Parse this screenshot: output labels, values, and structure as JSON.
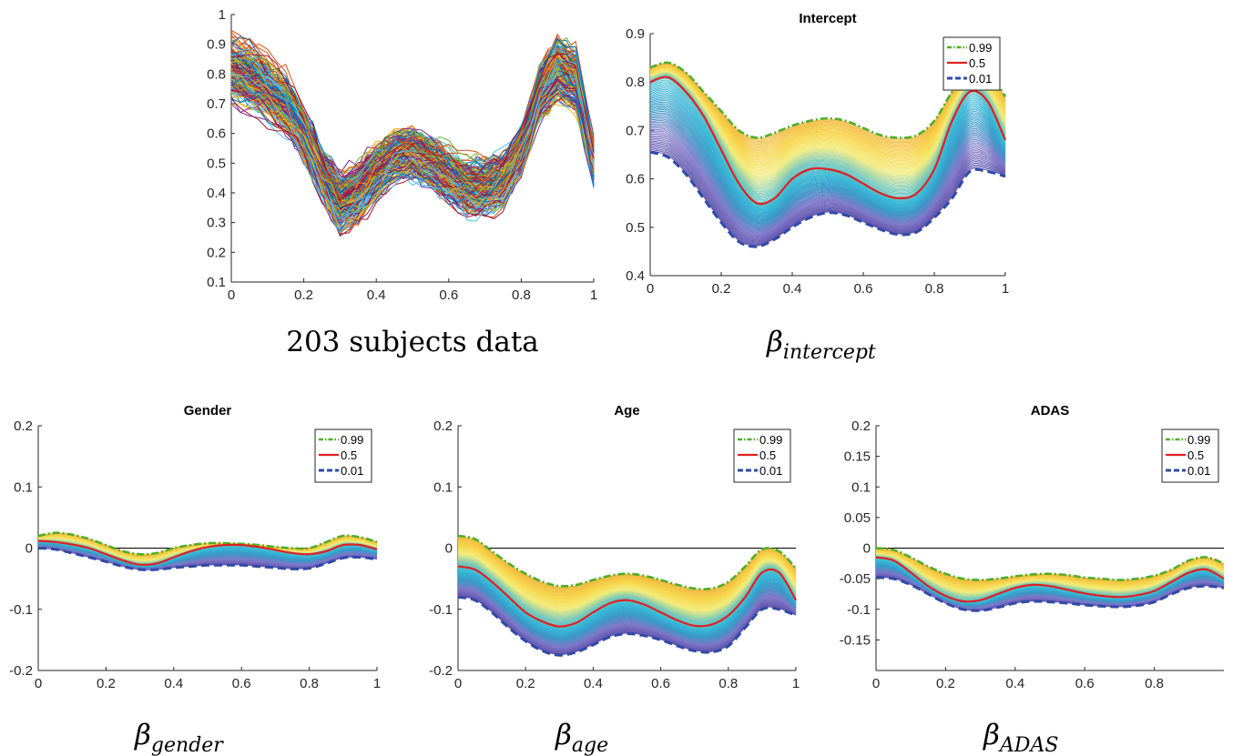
{
  "figure": {
    "captions": {
      "top_left": "203 subjects data",
      "top_right": {
        "main": "β",
        "sub": "intercept"
      },
      "bottom_left": {
        "main": "β",
        "sub": "gender"
      },
      "bottom_mid": {
        "main": "β",
        "sub": "age"
      },
      "bottom_right": {
        "main": "β",
        "sub": "ADAS"
      }
    }
  },
  "chart_data": [
    {
      "id": "subjects",
      "type": "line",
      "title": "",
      "xlim": [
        0,
        1
      ],
      "ylim": [
        0.1,
        1
      ],
      "xticks": [
        0,
        0.2,
        0.4,
        0.6,
        0.8,
        1
      ],
      "xtick_labels": [
        "0",
        "0.2",
        "0.4",
        "0.6",
        "0.8",
        "1"
      ],
      "yticks": [
        0.1,
        0.2,
        0.3,
        0.4,
        0.5,
        0.6,
        0.7,
        0.8,
        0.9,
        1
      ],
      "ytick_labels": [
        "0.1",
        "0.2",
        "0.3",
        "0.4",
        "0.5",
        "0.6",
        "0.7",
        "0.8",
        "0.9",
        "1"
      ],
      "n_series": 203,
      "x": [
        0,
        0.05,
        0.1,
        0.15,
        0.2,
        0.25,
        0.3,
        0.35,
        0.4,
        0.45,
        0.5,
        0.55,
        0.6,
        0.65,
        0.7,
        0.75,
        0.8,
        0.85,
        0.9,
        0.95,
        1
      ],
      "mean_profile": [
        0.8,
        0.78,
        0.74,
        0.69,
        0.6,
        0.47,
        0.37,
        0.4,
        0.47,
        0.52,
        0.53,
        0.5,
        0.46,
        0.42,
        0.42,
        0.45,
        0.55,
        0.72,
        0.81,
        0.77,
        0.5
      ],
      "colors": [
        "#0072bd",
        "#d95319",
        "#edb120",
        "#7e2f8e",
        "#77ac30",
        "#4dbeee",
        "#a2142f"
      ]
    },
    {
      "id": "intercept",
      "type": "line",
      "title": "Intercept",
      "xlim": [
        0,
        1
      ],
      "ylim": [
        0.4,
        0.9
      ],
      "xticks": [
        0,
        0.2,
        0.4,
        0.6,
        0.8,
        1
      ],
      "xtick_labels": [
        "0",
        "0.2",
        "0.4",
        "0.6",
        "0.8",
        "1"
      ],
      "yticks": [
        0.4,
        0.5,
        0.6,
        0.7,
        0.8,
        0.9
      ],
      "ytick_labels": [
        "0.4",
        "0.5",
        "0.6",
        "0.7",
        "0.8",
        "0.9"
      ],
      "zero_line": false,
      "legend_position": "top-right",
      "x": [
        0,
        0.05,
        0.1,
        0.15,
        0.2,
        0.25,
        0.3,
        0.35,
        0.4,
        0.45,
        0.5,
        0.55,
        0.6,
        0.65,
        0.7,
        0.75,
        0.8,
        0.85,
        0.9,
        0.95,
        1
      ],
      "series": [
        {
          "name": "0.99",
          "style": "dashdot",
          "color": "#4daf2a",
          "values": [
            0.83,
            0.84,
            0.82,
            0.78,
            0.74,
            0.7,
            0.685,
            0.695,
            0.71,
            0.72,
            0.725,
            0.72,
            0.705,
            0.69,
            0.685,
            0.69,
            0.72,
            0.78,
            0.83,
            0.82,
            0.77
          ]
        },
        {
          "name": "0.5",
          "style": "solid",
          "color": "#e02020",
          "values": [
            0.8,
            0.81,
            0.78,
            0.73,
            0.66,
            0.59,
            0.55,
            0.56,
            0.6,
            0.62,
            0.62,
            0.61,
            0.59,
            0.57,
            0.56,
            0.57,
            0.62,
            0.72,
            0.78,
            0.76,
            0.68
          ]
        },
        {
          "name": "0.01",
          "style": "dashed",
          "color": "#2e4aa8",
          "values": [
            0.655,
            0.645,
            0.61,
            0.56,
            0.51,
            0.47,
            0.46,
            0.475,
            0.5,
            0.52,
            0.53,
            0.525,
            0.51,
            0.495,
            0.485,
            0.49,
            0.52,
            0.56,
            0.615,
            0.615,
            0.605
          ]
        }
      ],
      "n_quantile_curves": 99
    },
    {
      "id": "gender",
      "type": "line",
      "title": "Gender",
      "xlim": [
        0,
        1
      ],
      "ylim": [
        -0.2,
        0.2
      ],
      "xticks": [
        0,
        0.2,
        0.4,
        0.6,
        0.8,
        1
      ],
      "xtick_labels": [
        "0",
        "0.2",
        "0.4",
        "0.6",
        "0.8",
        "1"
      ],
      "yticks": [
        -0.2,
        -0.1,
        0,
        0.1,
        0.2
      ],
      "ytick_labels": [
        "-0.2",
        "-0.1",
        "0",
        "0.1",
        "0.2"
      ],
      "zero_line": true,
      "legend_position": "top-right",
      "x": [
        0,
        0.05,
        0.1,
        0.15,
        0.2,
        0.25,
        0.3,
        0.35,
        0.4,
        0.45,
        0.5,
        0.55,
        0.6,
        0.65,
        0.7,
        0.75,
        0.8,
        0.85,
        0.9,
        0.95,
        1
      ],
      "series": [
        {
          "name": "0.99",
          "style": "dashdot",
          "color": "#4daf2a",
          "values": [
            0.02,
            0.025,
            0.022,
            0.015,
            0.005,
            -0.005,
            -0.01,
            -0.008,
            0.0,
            0.005,
            0.008,
            0.008,
            0.007,
            0.005,
            0.002,
            0.0,
            0.0,
            0.01,
            0.02,
            0.018,
            0.01
          ]
        },
        {
          "name": "0.5",
          "style": "solid",
          "color": "#e02020",
          "values": [
            0.012,
            0.01,
            0.006,
            0.0,
            -0.01,
            -0.02,
            -0.027,
            -0.025,
            -0.015,
            -0.005,
            0.002,
            0.005,
            0.005,
            0.002,
            -0.003,
            -0.008,
            -0.01,
            -0.005,
            0.005,
            0.005,
            -0.002
          ]
        },
        {
          "name": "0.01",
          "style": "dashed",
          "color": "#2e4aa8",
          "values": [
            0.0,
            -0.002,
            -0.008,
            -0.015,
            -0.022,
            -0.03,
            -0.035,
            -0.035,
            -0.032,
            -0.03,
            -0.028,
            -0.028,
            -0.028,
            -0.03,
            -0.032,
            -0.034,
            -0.033,
            -0.025,
            -0.016,
            -0.015,
            -0.018
          ]
        }
      ],
      "n_quantile_curves": 99
    },
    {
      "id": "age",
      "type": "line",
      "title": "Age",
      "xlim": [
        0,
        1
      ],
      "ylim": [
        -0.2,
        0.2
      ],
      "xticks": [
        0,
        0.2,
        0.4,
        0.6,
        0.8,
        1
      ],
      "xtick_labels": [
        "0",
        "0.2",
        "0.4",
        "0.6",
        "0.8",
        "1"
      ],
      "yticks": [
        -0.2,
        -0.1,
        0,
        0.1,
        0.2
      ],
      "ytick_labels": [
        "-0.2",
        "-0.1",
        "0",
        "0.1",
        "0.2"
      ],
      "zero_line": true,
      "legend_position": "top-right",
      "x": [
        0,
        0.05,
        0.1,
        0.15,
        0.2,
        0.25,
        0.3,
        0.35,
        0.4,
        0.45,
        0.5,
        0.55,
        0.6,
        0.65,
        0.7,
        0.75,
        0.8,
        0.85,
        0.9,
        0.95,
        1
      ],
      "series": [
        {
          "name": "0.99",
          "style": "dashdot",
          "color": "#4daf2a",
          "values": [
            0.02,
            0.015,
            -0.005,
            -0.025,
            -0.042,
            -0.055,
            -0.062,
            -0.06,
            -0.052,
            -0.045,
            -0.042,
            -0.045,
            -0.052,
            -0.06,
            -0.066,
            -0.066,
            -0.055,
            -0.03,
            -0.002,
            -0.005,
            -0.033
          ]
        },
        {
          "name": "0.5",
          "style": "solid",
          "color": "#e02020",
          "values": [
            -0.03,
            -0.035,
            -0.055,
            -0.08,
            -0.105,
            -0.12,
            -0.128,
            -0.122,
            -0.105,
            -0.09,
            -0.085,
            -0.092,
            -0.105,
            -0.118,
            -0.127,
            -0.125,
            -0.11,
            -0.08,
            -0.04,
            -0.04,
            -0.085
          ]
        },
        {
          "name": "0.01",
          "style": "dashed",
          "color": "#2e4aa8",
          "values": [
            -0.08,
            -0.085,
            -0.105,
            -0.13,
            -0.152,
            -0.168,
            -0.175,
            -0.17,
            -0.158,
            -0.145,
            -0.14,
            -0.143,
            -0.15,
            -0.16,
            -0.168,
            -0.17,
            -0.16,
            -0.13,
            -0.1,
            -0.1,
            -0.11
          ]
        }
      ],
      "n_quantile_curves": 99
    },
    {
      "id": "adas",
      "type": "line",
      "title": "ADAS",
      "xlim": [
        0,
        1
      ],
      "ylim": [
        -0.2,
        0.2
      ],
      "xticks": [
        0,
        0.2,
        0.4,
        0.6,
        0.8
      ],
      "xtick_labels": [
        "0",
        "0.2",
        "0.4",
        "0.6",
        "0.8"
      ],
      "yticks": [
        -0.15,
        -0.1,
        -0.05,
        0,
        0.05,
        0.1,
        0.15,
        0.2
      ],
      "ytick_labels": [
        "-0.15",
        "-0.1",
        "-0.05",
        "0",
        "0.05",
        "0.1",
        "0.15",
        "0.2"
      ],
      "zero_line": true,
      "legend_position": "top-right",
      "x": [
        0,
        0.05,
        0.1,
        0.15,
        0.2,
        0.25,
        0.3,
        0.35,
        0.4,
        0.45,
        0.5,
        0.55,
        0.6,
        0.65,
        0.7,
        0.75,
        0.8,
        0.85,
        0.9,
        0.95,
        1
      ],
      "series": [
        {
          "name": "0.99",
          "style": "dashdot",
          "color": "#4daf2a",
          "values": [
            0.0,
            -0.003,
            -0.015,
            -0.03,
            -0.042,
            -0.05,
            -0.052,
            -0.05,
            -0.046,
            -0.043,
            -0.042,
            -0.044,
            -0.048,
            -0.05,
            -0.052,
            -0.05,
            -0.045,
            -0.035,
            -0.02,
            -0.015,
            -0.025
          ]
        },
        {
          "name": "0.5",
          "style": "solid",
          "color": "#e02020",
          "values": [
            -0.015,
            -0.02,
            -0.04,
            -0.062,
            -0.078,
            -0.087,
            -0.085,
            -0.075,
            -0.065,
            -0.06,
            -0.062,
            -0.068,
            -0.074,
            -0.078,
            -0.08,
            -0.077,
            -0.07,
            -0.055,
            -0.04,
            -0.035,
            -0.05
          ]
        },
        {
          "name": "0.01",
          "style": "dashed",
          "color": "#2e4aa8",
          "values": [
            -0.048,
            -0.05,
            -0.06,
            -0.075,
            -0.09,
            -0.1,
            -0.102,
            -0.097,
            -0.09,
            -0.087,
            -0.088,
            -0.09,
            -0.093,
            -0.095,
            -0.096,
            -0.094,
            -0.088,
            -0.075,
            -0.065,
            -0.062,
            -0.065
          ]
        }
      ],
      "n_quantile_curves": 99
    }
  ]
}
